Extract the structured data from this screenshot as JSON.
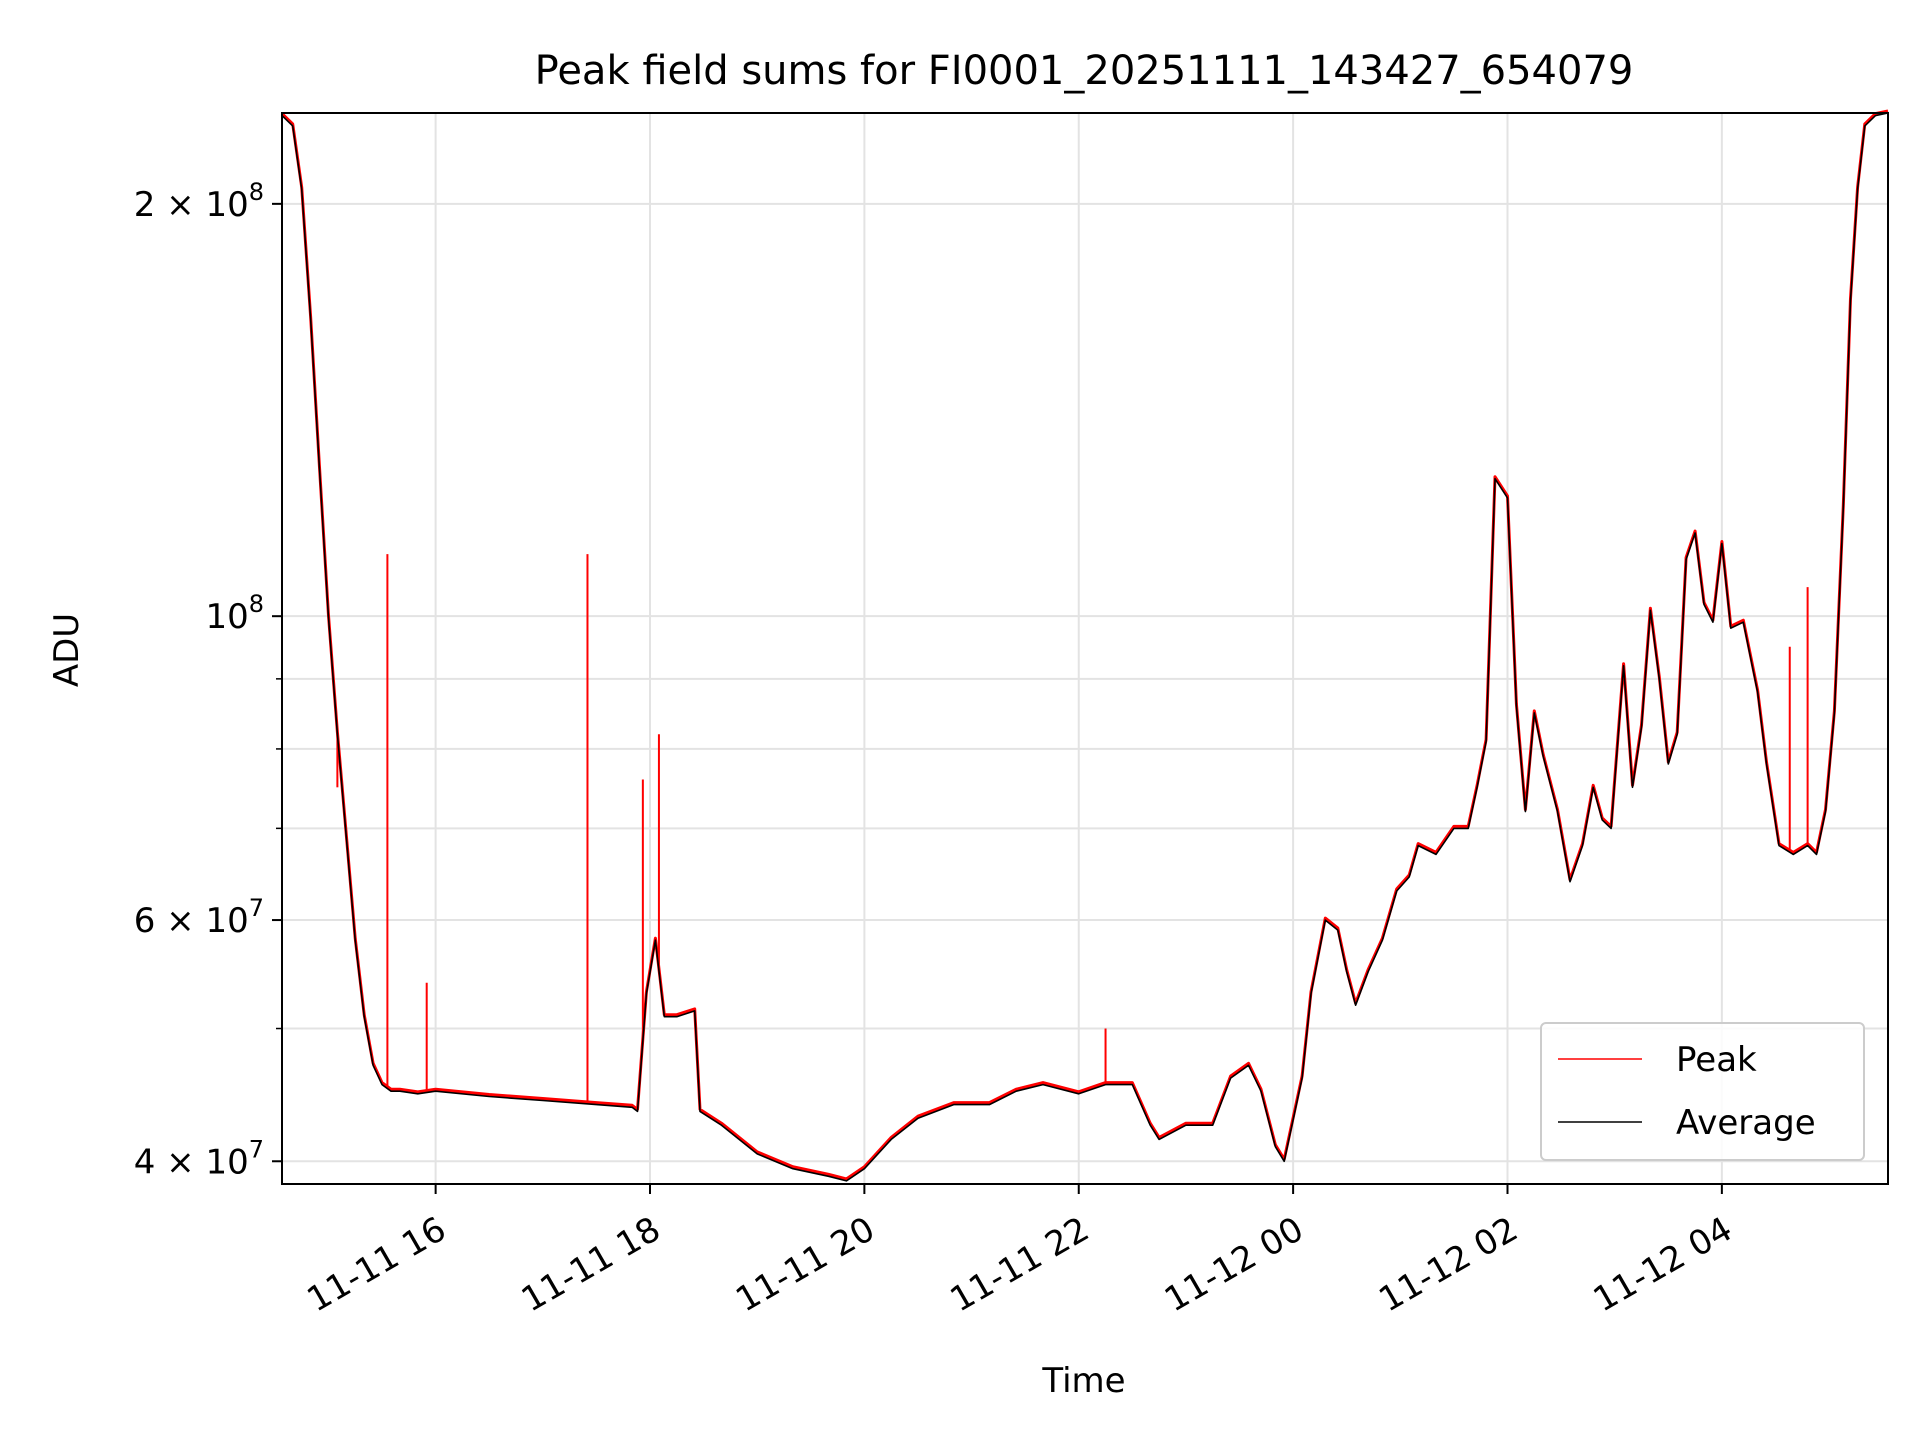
{
  "chart_data": {
    "type": "line",
    "title": "Peak field sums for FI0001_20251111_143427_654079",
    "xlabel": "Time",
    "ylabel": "ADU",
    "yscale": "log",
    "xlim": [
      "2025-11-11 14:34",
      "2025-11-12 05:33"
    ],
    "ylim": [
      38500000,
      233000000
    ],
    "grid": true,
    "legend_position": "lower right",
    "x_ticks": [
      {
        "value": "2025-11-11 16:00",
        "label": "11-11 16"
      },
      {
        "value": "2025-11-11 18:00",
        "label": "11-11 18"
      },
      {
        "value": "2025-11-11 20:00",
        "label": "11-11 20"
      },
      {
        "value": "2025-11-11 22:00",
        "label": "11-11 22"
      },
      {
        "value": "2025-11-12 00:00",
        "label": "11-12 00"
      },
      {
        "value": "2025-11-12 02:00",
        "label": "11-12 02"
      },
      {
        "value": "2025-11-12 04:00",
        "label": "11-12 04"
      }
    ],
    "y_ticks": [
      {
        "value": 40000000,
        "mantissa": "4",
        "exponent": "7"
      },
      {
        "value": 60000000,
        "mantissa": "6",
        "exponent": "7"
      },
      {
        "value": 100000000,
        "mantissa": "",
        "exponent": "8"
      },
      {
        "value": 200000000,
        "mantissa": "2",
        "exponent": "8"
      }
    ],
    "y_minor_ticks": [
      50000000,
      70000000,
      80000000,
      90000000
    ],
    "series": [
      {
        "name": "Average",
        "color": "#000000",
        "x": [
          "2025-11-11 14:34",
          "2025-11-11 14:40",
          "2025-11-11 14:45",
          "2025-11-11 14:50",
          "2025-11-11 14:55",
          "2025-11-11 15:00",
          "2025-11-11 15:05",
          "2025-11-11 15:10",
          "2025-11-11 15:15",
          "2025-11-11 15:20",
          "2025-11-11 15:25",
          "2025-11-11 15:30",
          "2025-11-11 15:35",
          "2025-11-11 15:40",
          "2025-11-11 15:50",
          "2025-11-11 16:00",
          "2025-11-11 16:30",
          "2025-11-11 17:00",
          "2025-11-11 17:30",
          "2025-11-11 17:50",
          "2025-11-11 17:53",
          "2025-11-11 17:58",
          "2025-11-11 18:03",
          "2025-11-11 18:08",
          "2025-11-11 18:15",
          "2025-11-11 18:25",
          "2025-11-11 18:28",
          "2025-11-11 18:40",
          "2025-11-11 19:00",
          "2025-11-11 19:20",
          "2025-11-11 19:40",
          "2025-11-11 19:50",
          "2025-11-11 20:00",
          "2025-11-11 20:15",
          "2025-11-11 20:30",
          "2025-11-11 20:50",
          "2025-11-11 21:10",
          "2025-11-11 21:25",
          "2025-11-11 21:40",
          "2025-11-11 22:00",
          "2025-11-11 22:15",
          "2025-11-11 22:30",
          "2025-11-11 22:40",
          "2025-11-11 22:45",
          "2025-11-11 23:00",
          "2025-11-11 23:15",
          "2025-11-11 23:25",
          "2025-11-11 23:35",
          "2025-11-11 23:42",
          "2025-11-11 23:50",
          "2025-11-11 23:55",
          "2025-11-12 00:05",
          "2025-11-12 00:10",
          "2025-11-12 00:18",
          "2025-11-12 00:25",
          "2025-11-12 00:30",
          "2025-11-12 00:35",
          "2025-11-12 00:42",
          "2025-11-12 00:50",
          "2025-11-12 00:58",
          "2025-11-12 01:05",
          "2025-11-12 01:10",
          "2025-11-12 01:20",
          "2025-11-12 01:30",
          "2025-11-12 01:38",
          "2025-11-12 01:43",
          "2025-11-12 01:48",
          "2025-11-12 01:53",
          "2025-11-12 02:00",
          "2025-11-12 02:05",
          "2025-11-12 02:10",
          "2025-11-12 02:15",
          "2025-11-12 02:20",
          "2025-11-12 02:28",
          "2025-11-12 02:35",
          "2025-11-12 02:42",
          "2025-11-12 02:48",
          "2025-11-12 02:53",
          "2025-11-12 02:58",
          "2025-11-12 03:05",
          "2025-11-12 03:10",
          "2025-11-12 03:15",
          "2025-11-12 03:20",
          "2025-11-12 03:25",
          "2025-11-12 03:30",
          "2025-11-12 03:35",
          "2025-11-12 03:40",
          "2025-11-12 03:45",
          "2025-11-12 03:50",
          "2025-11-12 03:55",
          "2025-11-12 04:00",
          "2025-11-12 04:05",
          "2025-11-12 04:12",
          "2025-11-12 04:20",
          "2025-11-12 04:25",
          "2025-11-12 04:32",
          "2025-11-12 04:40",
          "2025-11-12 04:48",
          "2025-11-12 04:53",
          "2025-11-12 04:58",
          "2025-11-12 05:03",
          "2025-11-12 05:08",
          "2025-11-12 05:12",
          "2025-11-12 05:16",
          "2025-11-12 05:20",
          "2025-11-12 05:26",
          "2025-11-12 05:33"
        ],
        "values": [
          232000000,
          228000000,
          205000000,
          165000000,
          128000000,
          100000000,
          82000000,
          69000000,
          58000000,
          51000000,
          47000000,
          45500000,
          45000000,
          45000000,
          44800000,
          45000000,
          44600000,
          44300000,
          44000000,
          43800000,
          43500000,
          53000000,
          58000000,
          51000000,
          51000000,
          51500000,
          43500000,
          42500000,
          40500000,
          39500000,
          39000000,
          38700000,
          39500000,
          41500000,
          43000000,
          44000000,
          44000000,
          45000000,
          45500000,
          44800000,
          45500000,
          45500000,
          42500000,
          41500000,
          42500000,
          42500000,
          46000000,
          47000000,
          45000000,
          41000000,
          40000000,
          46000000,
          53000000,
          60000000,
          59000000,
          55000000,
          52000000,
          55000000,
          58000000,
          63000000,
          64500000,
          68000000,
          67000000,
          70000000,
          70000000,
          75000000,
          81000000,
          126000000,
          122000000,
          86000000,
          72000000,
          85000000,
          79000000,
          72000000,
          64000000,
          68000000,
          75000000,
          71000000,
          70000000,
          92000000,
          75000000,
          83000000,
          101000000,
          90000000,
          78000000,
          82000000,
          110000000,
          115000000,
          102000000,
          99000000,
          113000000,
          98000000,
          99000000,
          88000000,
          78000000,
          68000000,
          67000000,
          68000000,
          67000000,
          72000000,
          85000000,
          120000000,
          170000000,
          205000000,
          228000000,
          232000000,
          233000000
        ]
      },
      {
        "name": "Peak",
        "color": "#ff0000",
        "spikes": [
          {
            "x": "2025-11-11 15:05",
            "value": 75000000
          },
          {
            "x": "2025-11-11 15:33",
            "value": 111000000
          },
          {
            "x": "2025-11-11 15:55",
            "value": 54000000
          },
          {
            "x": "2025-11-11 17:25",
            "value": 111000000
          },
          {
            "x": "2025-11-11 17:56",
            "value": 76000000
          },
          {
            "x": "2025-11-11 18:05",
            "value": 82000000
          },
          {
            "x": "2025-11-11 22:15",
            "value": 50000000
          },
          {
            "x": "2025-11-12 04:38",
            "value": 95000000
          },
          {
            "x": "2025-11-12 04:48",
            "value": 105000000
          }
        ]
      }
    ]
  }
}
